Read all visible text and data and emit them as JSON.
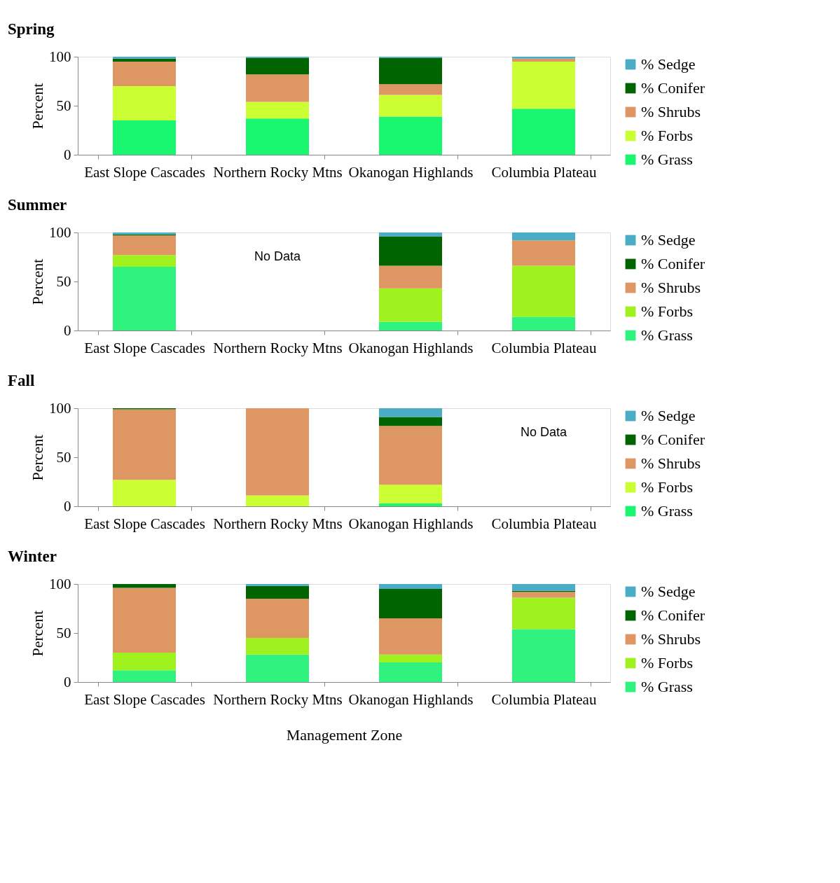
{
  "chart_data": [
    {
      "type": "bar",
      "stacked": true,
      "title": "Spring",
      "ylabel": "Percent",
      "ylim": [
        0,
        100
      ],
      "yticks": [
        0,
        50,
        100
      ],
      "legend": "right",
      "categories": [
        "East Slope Cascades",
        "Northern Rocky Mtns",
        "Okanogan Highlands",
        "Columbia Plateau"
      ],
      "series": [
        {
          "name": "% Grass",
          "color": "#19f770",
          "values": [
            35,
            37,
            39,
            47
          ]
        },
        {
          "name": "% Forbs",
          "color": "#ccff33",
          "values": [
            35,
            17,
            22,
            48
          ]
        },
        {
          "name": "% Shrubs",
          "color": "#de9662",
          "values": [
            25,
            28,
            11,
            3
          ]
        },
        {
          "name": "% Conifer",
          "color": "#006400",
          "values": [
            3,
            17,
            27,
            0
          ]
        },
        {
          "name": "% Sedge",
          "color": "#4bacc6",
          "values": [
            2,
            1,
            1,
            2
          ]
        }
      ]
    },
    {
      "type": "bar",
      "stacked": true,
      "title": "Summer",
      "ylabel": "Percent",
      "ylim": [
        0,
        100
      ],
      "yticks": [
        0,
        50,
        100
      ],
      "legend": "right",
      "categories": [
        "East Slope Cascades",
        "Northern Rocky Mtns",
        "Okanogan Highlands",
        "Columbia Plateau"
      ],
      "annotations": [
        "No Data"
      ],
      "series": [
        {
          "name": "% Grass",
          "color": "#30f27e",
          "values": [
            65,
            null,
            9,
            14
          ]
        },
        {
          "name": "% Forbs",
          "color": "#a0f21e",
          "values": [
            12,
            null,
            34,
            52
          ]
        },
        {
          "name": "% Shrubs",
          "color": "#de9662",
          "values": [
            20,
            null,
            23,
            26
          ]
        },
        {
          "name": "% Conifer",
          "color": "#006400",
          "values": [
            1,
            null,
            30,
            0
          ]
        },
        {
          "name": "% Sedge",
          "color": "#4bacc6",
          "values": [
            2,
            null,
            4,
            8
          ]
        }
      ]
    },
    {
      "type": "bar",
      "stacked": true,
      "title": "Fall",
      "ylabel": "Percent",
      "ylim": [
        0,
        100
      ],
      "yticks": [
        0,
        50,
        100
      ],
      "legend": "right",
      "categories": [
        "East Slope Cascades",
        "Northern Rocky Mtns",
        "Okanogan Highlands",
        "Columbia Plateau"
      ],
      "annotations": [
        "No Data"
      ],
      "series": [
        {
          "name": "% Grass",
          "color": "#19f770",
          "values": [
            0,
            0,
            3,
            null
          ]
        },
        {
          "name": "% Forbs",
          "color": "#ccff33",
          "values": [
            27,
            11,
            19,
            null
          ]
        },
        {
          "name": "% Shrubs",
          "color": "#de9662",
          "values": [
            72,
            89,
            60,
            null
          ]
        },
        {
          "name": "% Conifer",
          "color": "#006400",
          "values": [
            1,
            0,
            9,
            null
          ]
        },
        {
          "name": "% Sedge",
          "color": "#4bacc6",
          "values": [
            0,
            0,
            9,
            null
          ]
        }
      ]
    },
    {
      "type": "bar",
      "stacked": true,
      "title": "Winter",
      "ylabel": "Percent",
      "xlabel": "Management Zone",
      "ylim": [
        0,
        100
      ],
      "yticks": [
        0,
        50,
        100
      ],
      "legend": "right",
      "categories": [
        "East Slope Cascades",
        "Northern Rocky Mtns",
        "Okanogan Highlands",
        "Columbia Plateau"
      ],
      "series": [
        {
          "name": "% Grass",
          "color": "#30f27e",
          "values": [
            12,
            28,
            20,
            54
          ]
        },
        {
          "name": "% Forbs",
          "color": "#a0f21e",
          "values": [
            18,
            17,
            8,
            32
          ]
        },
        {
          "name": "% Shrubs",
          "color": "#de9662",
          "values": [
            66,
            40,
            37,
            6
          ]
        },
        {
          "name": "% Conifer",
          "color": "#006400",
          "values": [
            4,
            13,
            30,
            1
          ]
        },
        {
          "name": "% Sedge",
          "color": "#4bacc6",
          "values": [
            0,
            2,
            5,
            7
          ]
        }
      ]
    }
  ]
}
